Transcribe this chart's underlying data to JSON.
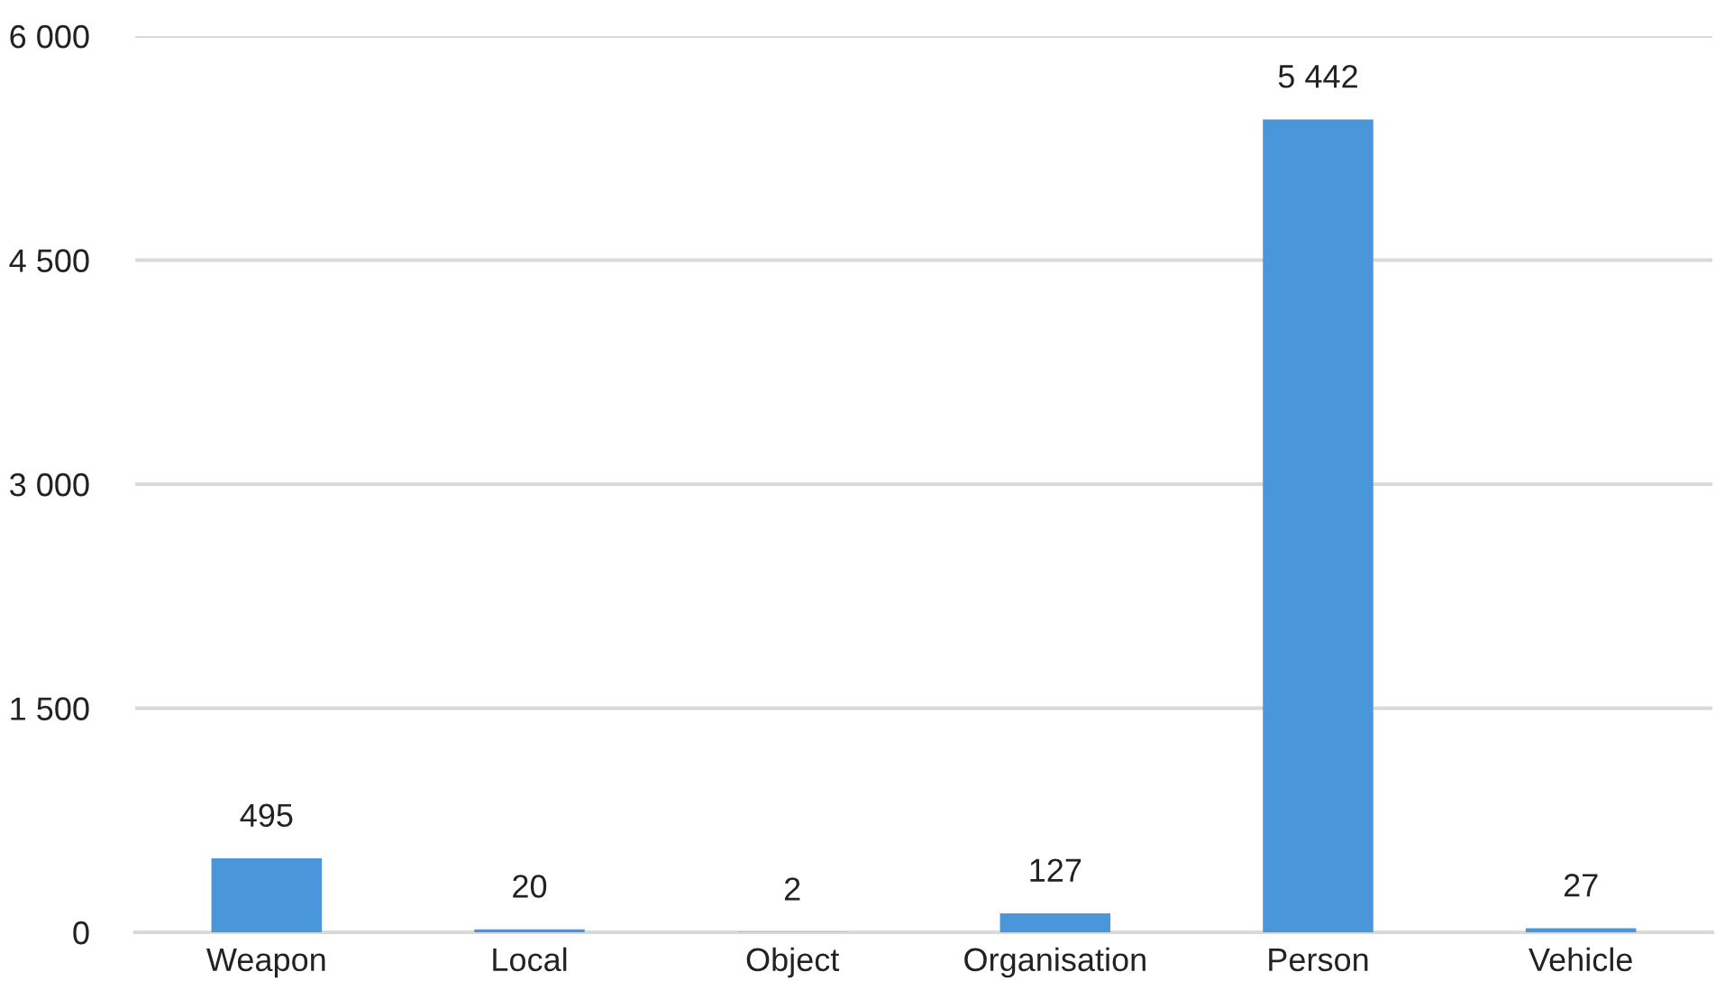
{
  "chart_data": {
    "type": "bar",
    "categories": [
      "Weapon",
      "Local",
      "Object",
      "Organisation",
      "Person",
      "Vehicle"
    ],
    "values": [
      495,
      20,
      2,
      127,
      5442,
      27
    ],
    "value_labels": [
      "495",
      "20",
      "2",
      "127",
      "5 442",
      "27"
    ],
    "color": "#4a96da",
    "ylim": [
      0,
      6000
    ],
    "yticks": [
      0,
      {
        "value": 1500,
        "label": "1 500"
      },
      {
        "value": 3000,
        "label": "3 000"
      },
      {
        "value": 4500,
        "label": "4 500"
      },
      {
        "value": 6000,
        "label": "6 000"
      }
    ],
    "grid": "y",
    "legend": false
  }
}
